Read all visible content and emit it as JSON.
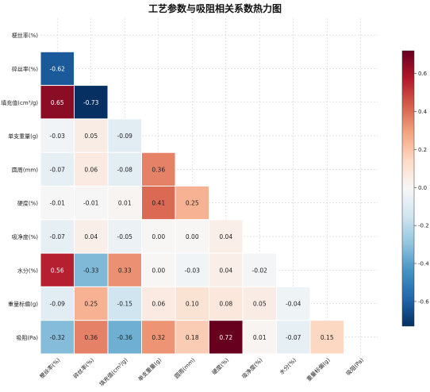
{
  "chart_data": {
    "type": "heatmap",
    "title": "工艺参数与吸阻相关系数热力图",
    "variables": [
      "梗丝率(%)",
      "碎丝率(%)",
      "填充值(cm³/g)",
      "单支重量(g)",
      "圆周(mm)",
      "硬度(%)",
      "吸净度(%)",
      "水分(%)",
      "重量标偏(g)",
      "吸阻(Pa)"
    ],
    "matrix": [
      [
        null,
        null,
        null,
        null,
        null,
        null,
        null,
        null,
        null,
        null
      ],
      [
        -0.62,
        null,
        null,
        null,
        null,
        null,
        null,
        null,
        null,
        null
      ],
      [
        0.65,
        -0.73,
        null,
        null,
        null,
        null,
        null,
        null,
        null,
        null
      ],
      [
        -0.03,
        0.05,
        -0.09,
        null,
        null,
        null,
        null,
        null,
        null,
        null
      ],
      [
        -0.07,
        0.06,
        -0.08,
        0.36,
        null,
        null,
        null,
        null,
        null,
        null
      ],
      [
        -0.01,
        -0.01,
        0.01,
        0.41,
        0.25,
        null,
        null,
        null,
        null,
        null
      ],
      [
        -0.07,
        0.04,
        -0.05,
        -0.0,
        0.0,
        0.04,
        null,
        null,
        null,
        null
      ],
      [
        0.56,
        -0.33,
        0.33,
        -0.0,
        -0.03,
        0.04,
        -0.02,
        null,
        null,
        null
      ],
      [
        -0.09,
        0.25,
        -0.15,
        0.06,
        0.1,
        0.08,
        0.05,
        -0.04,
        null,
        null
      ],
      [
        -0.32,
        0.36,
        -0.36,
        0.32,
        0.18,
        0.72,
        0.01,
        -0.07,
        0.15,
        null
      ]
    ],
    "colorbar": {
      "min": -0.73,
      "max": 0.72,
      "ticks": [
        "-0.6",
        "-0.4",
        "-0.2",
        "0.0",
        "0.2",
        "0.4",
        "0.6"
      ]
    },
    "colormap": "RdBu_r",
    "grid": true
  }
}
